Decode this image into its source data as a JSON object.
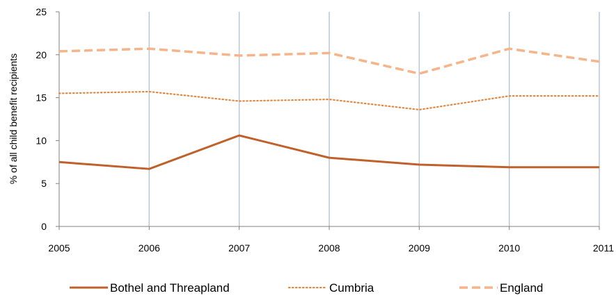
{
  "chart_data": {
    "type": "line",
    "title": "",
    "xlabel": "",
    "ylabel": "% of all child benefit recipients",
    "x": [
      "2005",
      "2006",
      "2007",
      "2008",
      "2009",
      "2010",
      "2011"
    ],
    "ylim": [
      0,
      25
    ],
    "yticks": [
      "0",
      "5",
      "10",
      "15",
      "20",
      "25"
    ],
    "grid": "vertical",
    "legend_position": "bottom",
    "series": [
      {
        "name": "Bothel and Threapland",
        "values": [
          7.5,
          6.7,
          10.6,
          8.0,
          7.2,
          6.9,
          6.9
        ],
        "color": "#C0612B",
        "style": "solid"
      },
      {
        "name": "Cumbria",
        "values": [
          15.5,
          15.7,
          14.6,
          14.8,
          13.6,
          15.2,
          15.2
        ],
        "color": "#E2873F",
        "style": "dotted"
      },
      {
        "name": "England",
        "values": [
          20.4,
          20.7,
          19.9,
          20.2,
          17.8,
          20.7,
          19.2
        ],
        "color": "#F5B48A",
        "style": "dashed"
      }
    ]
  }
}
